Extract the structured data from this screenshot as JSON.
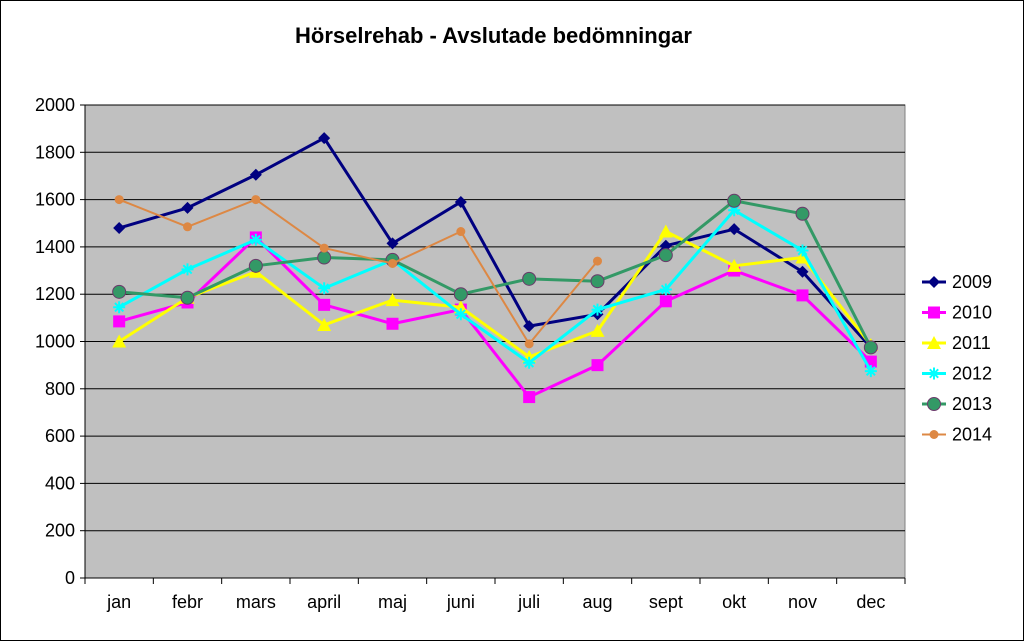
{
  "chart_data": {
    "type": "line",
    "title": "Hörselrehab - Avslutade bedömningar",
    "xlabel": "",
    "ylabel": "",
    "ylim": [
      0,
      2000
    ],
    "yticks": [
      0,
      200,
      400,
      600,
      800,
      1000,
      1200,
      1400,
      1600,
      1800,
      2000
    ],
    "grid": true,
    "legend_position": "right",
    "categories": [
      "jan",
      "febr",
      "mars",
      "april",
      "maj",
      "juni",
      "juli",
      "aug",
      "sept",
      "okt",
      "nov",
      "dec"
    ],
    "series": [
      {
        "name": "2009",
        "color": "#000080",
        "marker": "diamond",
        "width": 3,
        "values": [
          1480,
          1565,
          1705,
          1860,
          1415,
          1590,
          1065,
          1115,
          1405,
          1475,
          1295,
          975
        ]
      },
      {
        "name": "2010",
        "color": "#ff00ff",
        "marker": "square",
        "width": 3,
        "values": [
          1085,
          1165,
          1440,
          1155,
          1075,
          1135,
          765,
          900,
          1170,
          1300,
          1195,
          915
        ]
      },
      {
        "name": "2011",
        "color": "#ffff00",
        "marker": "triangle",
        "width": 3,
        "values": [
          1000,
          1185,
          1295,
          1070,
          1175,
          1145,
          935,
          1045,
          1465,
          1320,
          1355,
          985
        ]
      },
      {
        "name": "2012",
        "color": "#00ffff",
        "marker": "star",
        "width": 3,
        "values": [
          1145,
          1305,
          1430,
          1225,
          1345,
          1115,
          910,
          1135,
          1220,
          1555,
          1385,
          875
        ]
      },
      {
        "name": "2013",
        "color": "#339966",
        "marker": "circle",
        "width": 3,
        "values": [
          1210,
          1185,
          1320,
          1355,
          1345,
          1200,
          1265,
          1255,
          1365,
          1595,
          1540,
          975
        ]
      },
      {
        "name": "2014",
        "color": "#dd8844",
        "marker": "dot",
        "width": 2,
        "values": [
          1600,
          1485,
          1600,
          1395,
          1330,
          1465,
          990,
          1340,
          null,
          null,
          null,
          null
        ]
      }
    ]
  }
}
